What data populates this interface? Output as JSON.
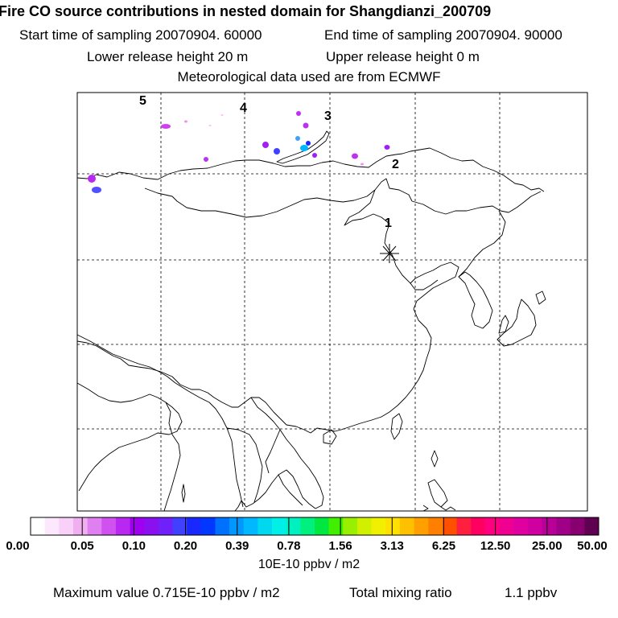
{
  "header": {
    "title": "Fire CO source contributions in nested domain for Shangdianzi_200709",
    "start_time": "Start time of sampling 20070904. 60000",
    "end_time": "End time of sampling 20070904. 90000",
    "lower_release": "Lower release height   20 m",
    "upper_release": "Upper release height    0 m",
    "met_data": "Meteorological data used are from ECMWF"
  },
  "map": {
    "point_labels": [
      "1",
      "2",
      "3",
      "4",
      "5"
    ],
    "receptor_marker": "receptor-star"
  },
  "colorbar": {
    "tick_labels": [
      "0.00",
      "0.05",
      "0.10",
      "0.20",
      "0.39",
      "0.78",
      "1.56",
      "3.13",
      "6.25",
      "12.50",
      "25.00",
      "50.00"
    ],
    "colors": [
      "#ffffff",
      "#fce8fc",
      "#f8d0f8",
      "#f0b0f0",
      "#e080f0",
      "#d050f0",
      "#b828f0",
      "#a000f0",
      "#8a10f0",
      "#7020f8",
      "#4040ff",
      "#1828ff",
      "#0038ff",
      "#0070ff",
      "#0098ff",
      "#00b8ff",
      "#00d8f0",
      "#00f0e8",
      "#00f0c0",
      "#00f080",
      "#00e840",
      "#40f000",
      "#98f000",
      "#d0f000",
      "#f0f000",
      "#ffe000",
      "#ffc000",
      "#ffa000",
      "#ff8000",
      "#ff5000",
      "#ff2040",
      "#ff0060",
      "#ff0080",
      "#f00090",
      "#e000a0",
      "#d000a0",
      "#b80098",
      "#a00088",
      "#880070",
      "#600050"
    ],
    "unit": "10E-10 ppbv / m2"
  },
  "footer": {
    "max_label": "Maximum value  0.715E-10 ppbv / m2",
    "total_label": "Total mixing ratio",
    "total_value": "1.1 ppbv"
  }
}
